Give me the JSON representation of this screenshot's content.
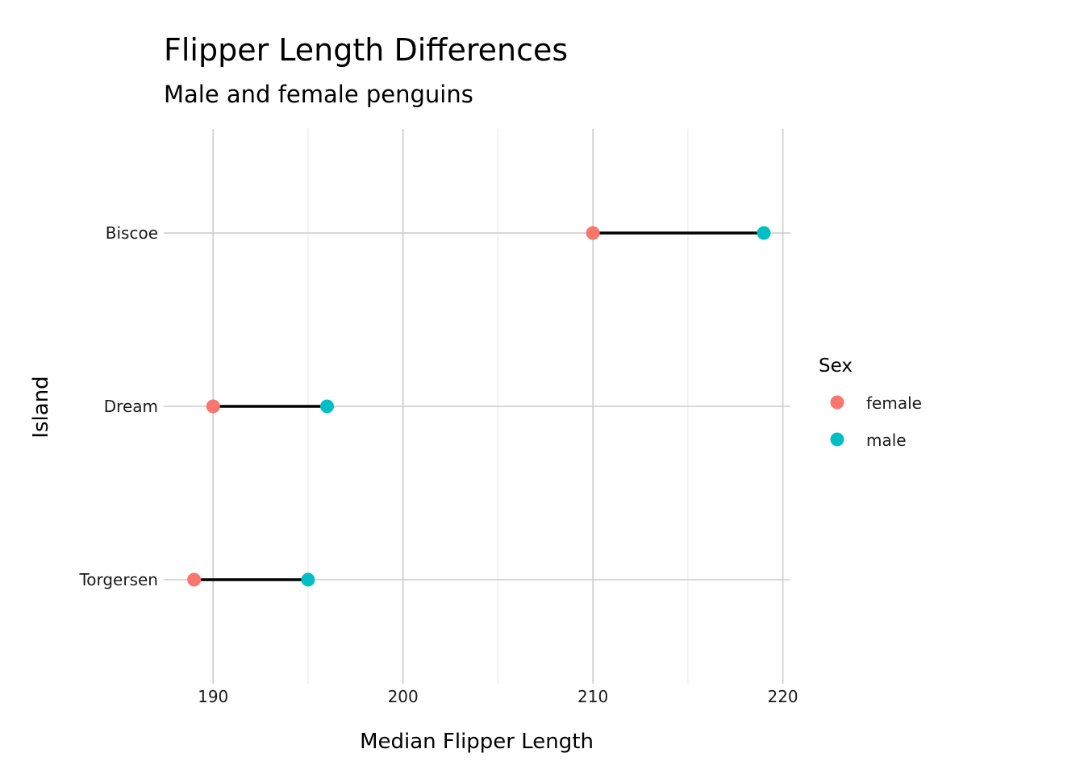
{
  "chart_data": {
    "type": "dumbbell",
    "title": "Flipper Length Differences",
    "subtitle": "Male and female penguins",
    "xlabel": "Median Flipper Length",
    "ylabel": "Island",
    "xlim": [
      187.4,
      220.4
    ],
    "x_ticks": [
      190,
      200,
      210,
      220
    ],
    "x_minor_ticks": [
      195,
      205,
      215
    ],
    "categories": [
      "Biscoe",
      "Dream",
      "Torgersen"
    ],
    "series": [
      {
        "name": "female",
        "color": "#F8766D",
        "values": [
          210,
          190,
          189
        ]
      },
      {
        "name": "male",
        "color": "#00BFC4",
        "values": [
          219,
          196,
          195
        ]
      }
    ],
    "segment_color": "#000000",
    "grid": true,
    "legend": {
      "title": "Sex",
      "position": "right",
      "items": [
        {
          "label": "female",
          "color": "#F8766D"
        },
        {
          "label": "male",
          "color": "#00BFC4"
        }
      ]
    }
  }
}
